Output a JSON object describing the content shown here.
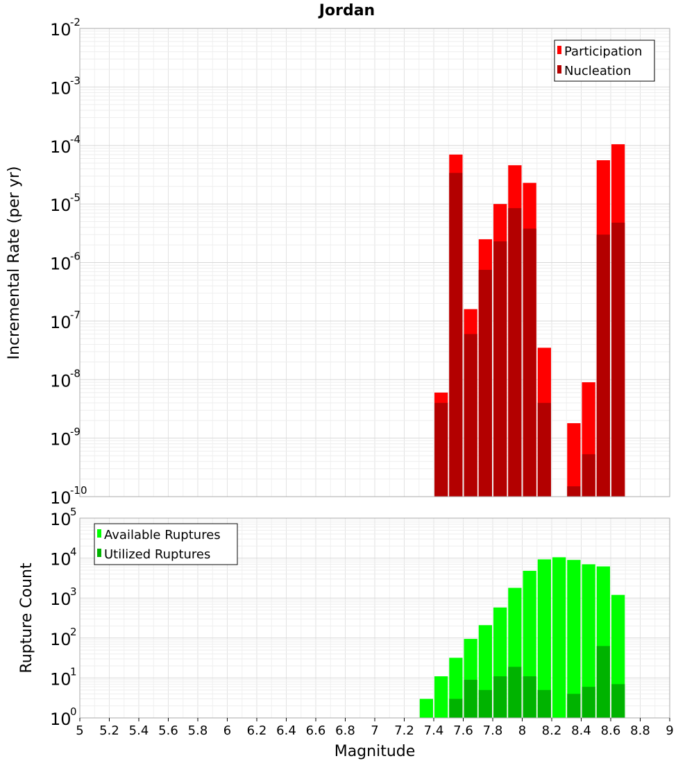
{
  "chart_data": [
    {
      "type": "bar",
      "title": "Jordan",
      "ylabel": "Incremental Rate (per yr)",
      "xlim": [
        5,
        9
      ],
      "ylim": [
        1e-10,
        0.01
      ],
      "yscale": "log",
      "grid": true,
      "legend_position": "top-right",
      "x": [
        7.45,
        7.55,
        7.65,
        7.75,
        7.85,
        7.95,
        8.05,
        8.15,
        8.35,
        8.45,
        8.55,
        8.65
      ],
      "series": [
        {
          "name": "Participation",
          "color": "#ff0000",
          "values": [
            6e-09,
            7e-05,
            1.6e-07,
            2.5e-06,
            1e-05,
            4.6e-05,
            2.3e-05,
            3.5e-08,
            1.8e-09,
            9e-09,
            5.6e-05,
            0.000105
          ]
        },
        {
          "name": "Nucleation",
          "color": "#b30000",
          "values": [
            4e-09,
            3.4e-05,
            6e-08,
            7.5e-07,
            2.3e-06,
            8.5e-06,
            3.8e-06,
            4e-09,
            1.5e-10,
            5.3e-10,
            3e-06,
            4.8e-06
          ]
        }
      ]
    },
    {
      "type": "bar",
      "xlabel": "Magnitude",
      "ylabel": "Rupture Count",
      "xlim": [
        5,
        9
      ],
      "ylim": [
        1,
        100000.0
      ],
      "yscale": "log",
      "grid": true,
      "legend_position": "top-left",
      "x": [
        7.25,
        7.35,
        7.45,
        7.55,
        7.65,
        7.75,
        7.85,
        7.95,
        8.05,
        8.15,
        8.25,
        8.35,
        8.45,
        8.55,
        8.65
      ],
      "series": [
        {
          "name": "Available Ruptures",
          "color": "#00ff00",
          "values": [
            1,
            3,
            11,
            32,
            95,
            210,
            580,
            1800,
            4800,
            9300,
            10500,
            9000,
            7000,
            6200,
            1200
          ]
        },
        {
          "name": "Utilized Ruptures",
          "color": "#00b300",
          "values": [
            null,
            null,
            1,
            3,
            9,
            5,
            11,
            19,
            11,
            5,
            null,
            4,
            6,
            63,
            7
          ]
        }
      ]
    }
  ],
  "x_ticks": [
    "5",
    "5.2",
    "5.4",
    "5.6",
    "5.8",
    "6",
    "6.2",
    "6.4",
    "6.6",
    "6.8",
    "7",
    "7.2",
    "7.4",
    "7.6",
    "7.8",
    "8",
    "8.2",
    "8.4",
    "8.6",
    "8.8",
    "9"
  ],
  "top_y_ticks": [
    {
      "base": "10",
      "exp": "-2"
    },
    {
      "base": "10",
      "exp": "-3"
    },
    {
      "base": "10",
      "exp": "-4"
    },
    {
      "base": "10",
      "exp": "-5"
    },
    {
      "base": "10",
      "exp": "-6"
    },
    {
      "base": "10",
      "exp": "-7"
    },
    {
      "base": "10",
      "exp": "-8"
    },
    {
      "base": "10",
      "exp": "-9"
    },
    {
      "base": "10",
      "exp": "-10"
    }
  ],
  "bottom_y_ticks": [
    {
      "base": "10",
      "exp": "5"
    },
    {
      "base": "10",
      "exp": "4"
    },
    {
      "base": "10",
      "exp": "3"
    },
    {
      "base": "10",
      "exp": "2"
    },
    {
      "base": "10",
      "exp": "1"
    },
    {
      "base": "10",
      "exp": "0"
    }
  ]
}
